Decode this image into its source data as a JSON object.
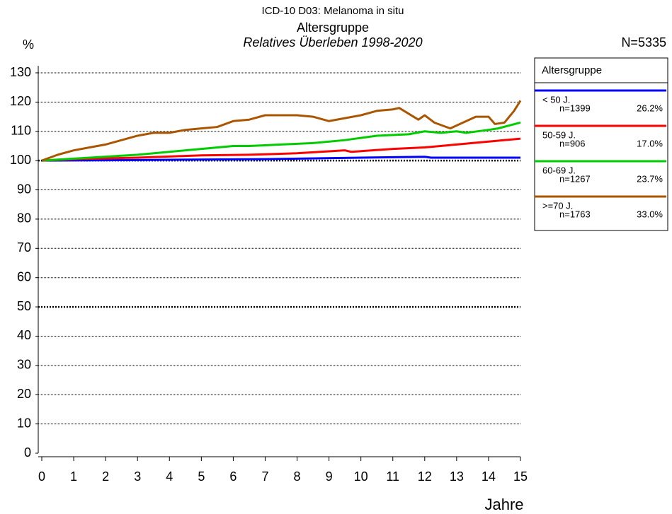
{
  "chart_data": {
    "type": "line",
    "title": "ICD-10 D03: Melanoma in situ",
    "subtitle": "Altersgruppe",
    "caption": "Relatives Überleben 1998-2020",
    "sample_size": "N=5335",
    "ylabel": "%",
    "xlabel": "Jahre",
    "legend_title": "Altersgruppe",
    "legend": "right",
    "xlim": [
      0,
      15
    ],
    "xticks": [
      0,
      1,
      2,
      3,
      4,
      5,
      6,
      7,
      8,
      9,
      10,
      11,
      12,
      13,
      14,
      15
    ],
    "ylim": [
      0,
      130
    ],
    "yticks": [
      0,
      10,
      20,
      30,
      40,
      50,
      60,
      70,
      80,
      90,
      100,
      110,
      120,
      130
    ],
    "grid": true,
    "reference_lines": [
      50,
      100
    ],
    "series": [
      {
        "name": "< 50 J.",
        "count_label": "n=1399",
        "share_label": "26.2%",
        "color": "#0000ff",
        "x": [
          0,
          3,
          7,
          10,
          12,
          12.2,
          15
        ],
        "values": [
          100,
          100.2,
          100.5,
          101,
          101.3,
          101,
          101
        ]
      },
      {
        "name": "50-59 J.",
        "count_label": "n=906",
        "share_label": "17.0%",
        "color": "#ff0000",
        "x": [
          0,
          1,
          3,
          5,
          6.5,
          8,
          9.5,
          9.7,
          11,
          12,
          13,
          14,
          15
        ],
        "values": [
          100,
          100.5,
          101,
          101.8,
          102,
          102.5,
          103.5,
          103,
          104,
          104.5,
          105.5,
          106.5,
          107.5
        ]
      },
      {
        "name": "60-69 J.",
        "count_label": "n=1267",
        "share_label": "23.7%",
        "color": "#00cc00",
        "x": [
          0,
          1.5,
          3,
          4,
          5,
          6,
          6.5,
          7.5,
          8.5,
          9.5,
          10.5,
          11.5,
          12,
          12.5,
          13,
          13.3,
          14,
          14.3,
          15
        ],
        "values": [
          100,
          101,
          102,
          103,
          104,
          105,
          105,
          105.5,
          106,
          107,
          108.5,
          109,
          110,
          109.5,
          110,
          109.5,
          110.5,
          111,
          113
        ]
      },
      {
        "name": ">=70 J.",
        "count_label": "n=1763",
        "share_label": "33.0%",
        "color": "#aa5500",
        "x": [
          0,
          0.5,
          1,
          1.5,
          2,
          2.5,
          3,
          3.5,
          4,
          4.5,
          5,
          5.5,
          6,
          6.5,
          7,
          7.5,
          8,
          8.5,
          9,
          9.5,
          10,
          10.5,
          11,
          11.2,
          11.5,
          11.8,
          12,
          12.3,
          12.8,
          13.2,
          13.6,
          14,
          14.2,
          14.5,
          14.8,
          15
        ],
        "values": [
          100,
          102,
          103.5,
          104.5,
          105.5,
          107,
          108.5,
          109.5,
          109.5,
          110.5,
          111,
          111.5,
          113.5,
          114,
          115.5,
          115.5,
          115.5,
          115,
          113.5,
          114.5,
          115.5,
          117,
          117.5,
          118,
          116,
          114,
          115.5,
          113,
          111,
          113,
          115,
          115,
          112.5,
          113,
          117,
          120.5
        ]
      }
    ]
  }
}
